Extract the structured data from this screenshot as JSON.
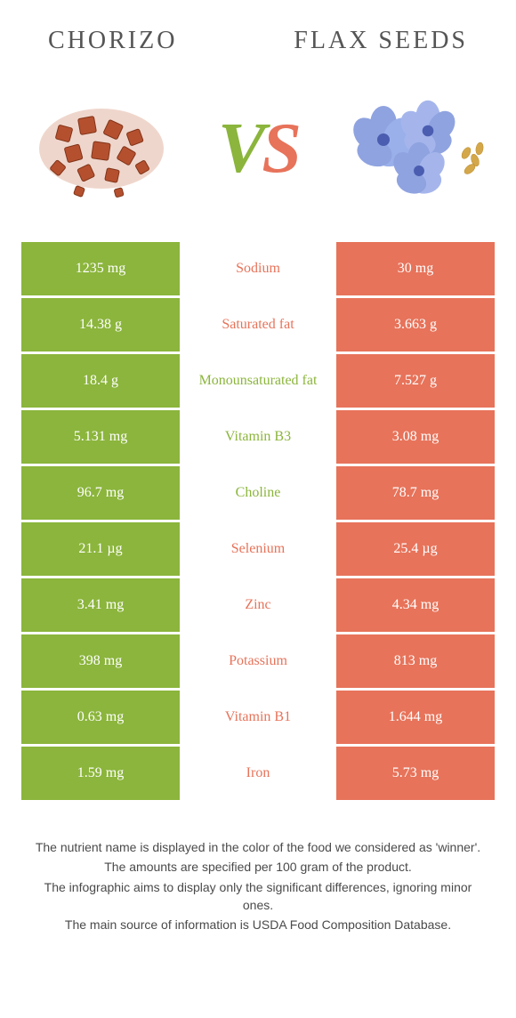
{
  "titles": {
    "left": "Chorizo",
    "right": "Flax seeds"
  },
  "colors": {
    "green": "#8bb53c",
    "orange": "#e7735a",
    "bg": "#ffffff",
    "text": "#4a4a4a"
  },
  "vs": {
    "v": "V",
    "s": "S"
  },
  "rows": [
    {
      "left": "1235 mg",
      "label": "Sodium",
      "right": "30 mg",
      "winner": "orange"
    },
    {
      "left": "14.38 g",
      "label": "Saturated fat",
      "right": "3.663 g",
      "winner": "orange"
    },
    {
      "left": "18.4 g",
      "label": "Monounsaturated fat",
      "right": "7.527 g",
      "winner": "green"
    },
    {
      "left": "5.131 mg",
      "label": "Vitamin B3",
      "right": "3.08 mg",
      "winner": "green"
    },
    {
      "left": "96.7 mg",
      "label": "Choline",
      "right": "78.7 mg",
      "winner": "green"
    },
    {
      "left": "21.1 µg",
      "label": "Selenium",
      "right": "25.4 µg",
      "winner": "orange"
    },
    {
      "left": "3.41 mg",
      "label": "Zinc",
      "right": "4.34 mg",
      "winner": "orange"
    },
    {
      "left": "398 mg",
      "label": "Potassium",
      "right": "813 mg",
      "winner": "orange"
    },
    {
      "left": "0.63 mg",
      "label": "Vitamin B1",
      "right": "1.644 mg",
      "winner": "orange"
    },
    {
      "left": "1.59 mg",
      "label": "Iron",
      "right": "5.73 mg",
      "winner": "orange"
    }
  ],
  "footer": [
    "The nutrient name is displayed in the color of the food we considered as 'winner'.",
    "The amounts are specified per 100 gram of the product.",
    "The infographic aims to display only the significant differences, ignoring minor ones.",
    "The main source of information is USDA Food Composition Database."
  ]
}
